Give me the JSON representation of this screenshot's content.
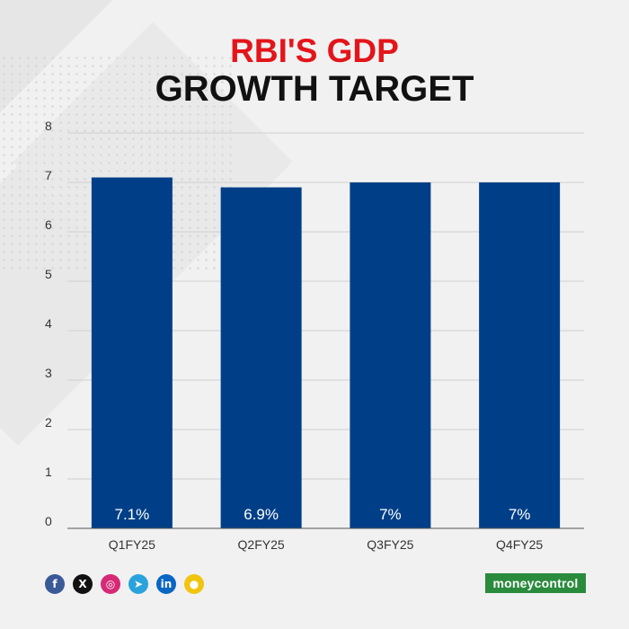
{
  "title": {
    "line1": "RBI'S GDP",
    "line2": "GROWTH TARGET"
  },
  "colors": {
    "bar": "#003f87",
    "accent": "#e3151b",
    "logo_bg": "#2a8b3d",
    "grid": "#cfcfcf"
  },
  "chart_data": {
    "type": "bar",
    "title": "RBI'S GDP GROWTH TARGET",
    "categories": [
      "Q1FY25",
      "Q2FY25",
      "Q3FY25",
      "Q4FY25"
    ],
    "values": [
      7.1,
      6.9,
      7,
      7
    ],
    "data_labels": [
      "7.1%",
      "6.9%",
      "7%",
      "7%"
    ],
    "ylim": [
      0,
      8
    ],
    "yticks": [
      "0",
      "1",
      "2",
      "3",
      "4",
      "5",
      "6",
      "7",
      "8"
    ],
    "grid": true,
    "legend": "none"
  },
  "footer": {
    "icons": [
      {
        "name": "facebook-icon",
        "glyph": "f",
        "color": "#3b5998"
      },
      {
        "name": "x-icon",
        "glyph": "X",
        "color": "#111111"
      },
      {
        "name": "instagram-icon",
        "glyph": "◎",
        "color": "#d62976"
      },
      {
        "name": "telegram-icon",
        "glyph": "➤",
        "color": "#2aa3dc"
      },
      {
        "name": "linkedin-icon",
        "glyph": "in",
        "color": "#0a66c2"
      },
      {
        "name": "koo-icon",
        "glyph": "●",
        "color": "#f1c40f"
      }
    ],
    "logo_text": "moneycontrol"
  }
}
